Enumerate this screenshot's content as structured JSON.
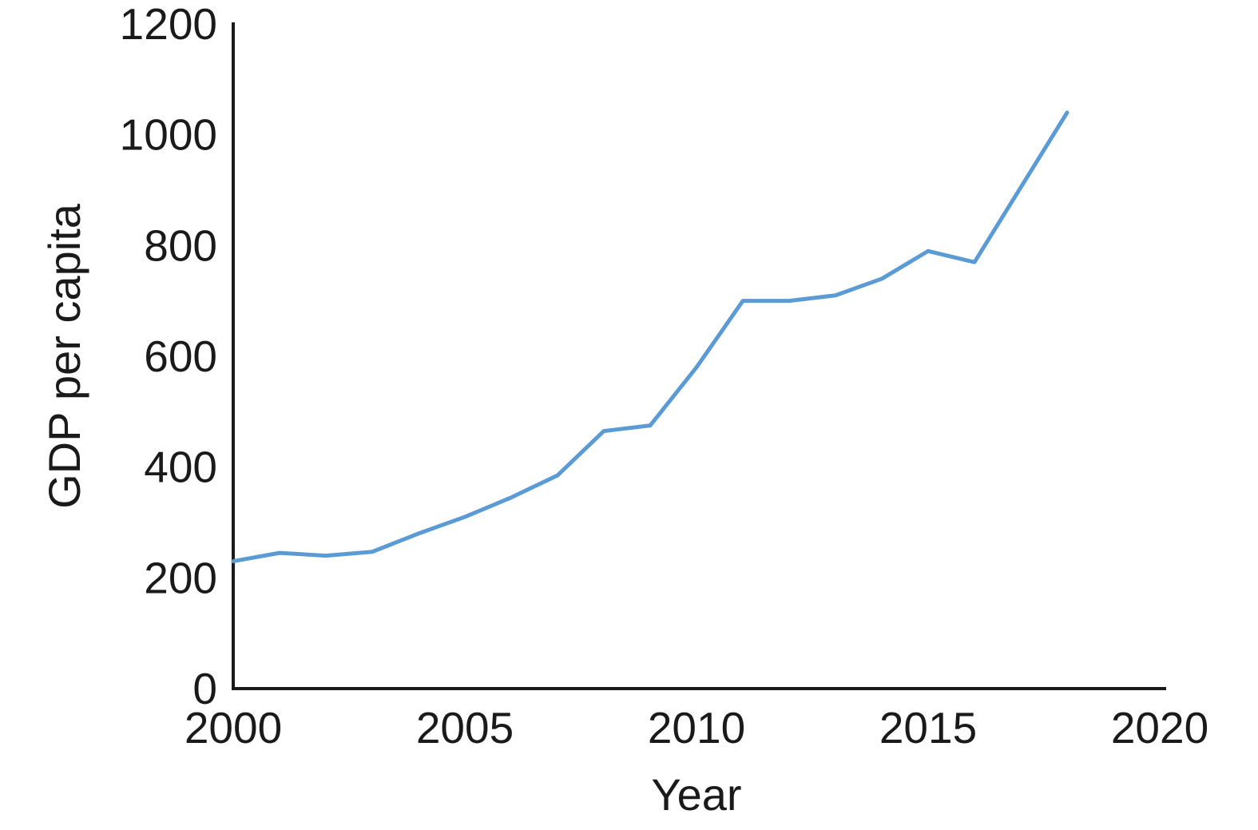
{
  "figure": {
    "background_color": "#ffffff"
  },
  "chart_data": {
    "type": "line",
    "title": "",
    "xlabel": "Year",
    "ylabel": "GDP per capita",
    "x": [
      2000,
      2001,
      2002,
      2003,
      2004,
      2005,
      2006,
      2007,
      2008,
      2009,
      2010,
      2011,
      2012,
      2013,
      2014,
      2015,
      2016,
      2017,
      2018
    ],
    "values": [
      230,
      245,
      240,
      247,
      280,
      310,
      345,
      385,
      465,
      475,
      580,
      700,
      700,
      710,
      740,
      790,
      770,
      905,
      1040
    ],
    "series_name": "GDP per capita",
    "xlim": [
      2000,
      2020
    ],
    "ylim": [
      0,
      1200
    ],
    "x_ticks": [
      2000,
      2005,
      2010,
      2015,
      2020
    ],
    "y_ticks": [
      0,
      200,
      400,
      600,
      800,
      1000,
      1200
    ],
    "grid": false,
    "legend": "none",
    "line_color": "#5b9bd5",
    "axis_color": "#1a1a1a",
    "tick_label_color": "#1a1a1a"
  }
}
